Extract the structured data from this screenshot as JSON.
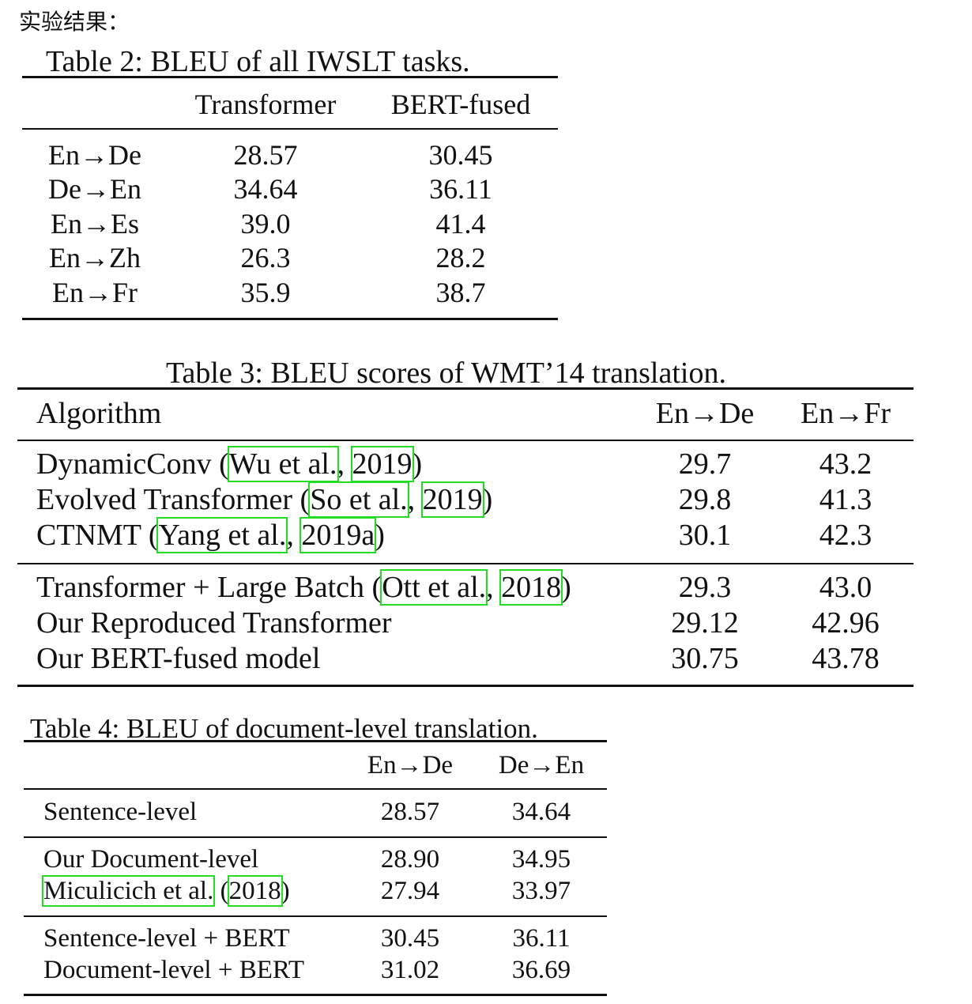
{
  "heading": "实验结果：",
  "table2": {
    "caption": "Table 2: BLEU of all IWSLT tasks.",
    "headers": [
      "Transformer",
      "BERT-fused"
    ],
    "rows": [
      {
        "task": "En→De",
        "transformer": "28.57",
        "bert_fused": "30.45"
      },
      {
        "task": "De→En",
        "transformer": "34.64",
        "bert_fused": "36.11"
      },
      {
        "task": "En→Es",
        "transformer": "39.0",
        "bert_fused": "41.4"
      },
      {
        "task": "En→Zh",
        "transformer": "26.3",
        "bert_fused": "28.2"
      },
      {
        "task": "En→Fr",
        "transformer": "35.9",
        "bert_fused": "38.7"
      }
    ]
  },
  "table3": {
    "caption": "Table 3: BLEU scores of WMT’14 translation.",
    "headers": [
      "Algorithm",
      "En→De",
      "En→Fr"
    ],
    "rows": [
      {
        "algo_prefix": "DynamicConv (",
        "cite_authors": "Wu et al.",
        "cite_sep": ", ",
        "cite_year": "2019",
        "algo_suffix": ")",
        "en_de": "29.7",
        "en_fr": "43.2"
      },
      {
        "algo_prefix": "Evolved Transformer (",
        "cite_authors": "So et al.",
        "cite_sep": ", ",
        "cite_year": "2019",
        "algo_suffix": ")",
        "en_de": "29.8",
        "en_fr": "41.3"
      },
      {
        "algo_prefix": "CTNMT (",
        "cite_authors": "Yang et al.",
        "cite_sep": ", ",
        "cite_year": "2019a",
        "algo_suffix": ")",
        "en_de": "30.1",
        "en_fr": "42.3"
      },
      {
        "algo_prefix": "Transformer + Large Batch (",
        "cite_authors": "Ott et al.",
        "cite_sep": ", ",
        "cite_year": "2018",
        "algo_suffix": ")",
        "en_de": "29.3",
        "en_fr": "43.0"
      },
      {
        "algo": "Our Reproduced Transformer",
        "en_de": "29.12",
        "en_fr": "42.96"
      },
      {
        "algo": "Our BERT-fused model",
        "en_de": "30.75",
        "en_fr": "43.78"
      }
    ]
  },
  "table4": {
    "caption": "Table 4: BLEU of document-level translation.",
    "headers": [
      "En→De",
      "De→En"
    ],
    "rows": [
      {
        "setting": "Sentence-level",
        "en_de": "28.57",
        "de_en": "34.64"
      },
      {
        "setting": "Our Document-level",
        "en_de": "28.90",
        "de_en": "34.95"
      },
      {
        "cite_authors": "Miculicich et al.",
        "cite_sep": " (",
        "cite_year": "2018",
        "cite_close": ")",
        "en_de": "27.94",
        "de_en": "33.97"
      },
      {
        "setting": "Sentence-level + BERT",
        "en_de": "30.45",
        "de_en": "36.11"
      },
      {
        "setting": "Document-level + BERT",
        "en_de": "31.02",
        "de_en": "36.69"
      }
    ]
  }
}
